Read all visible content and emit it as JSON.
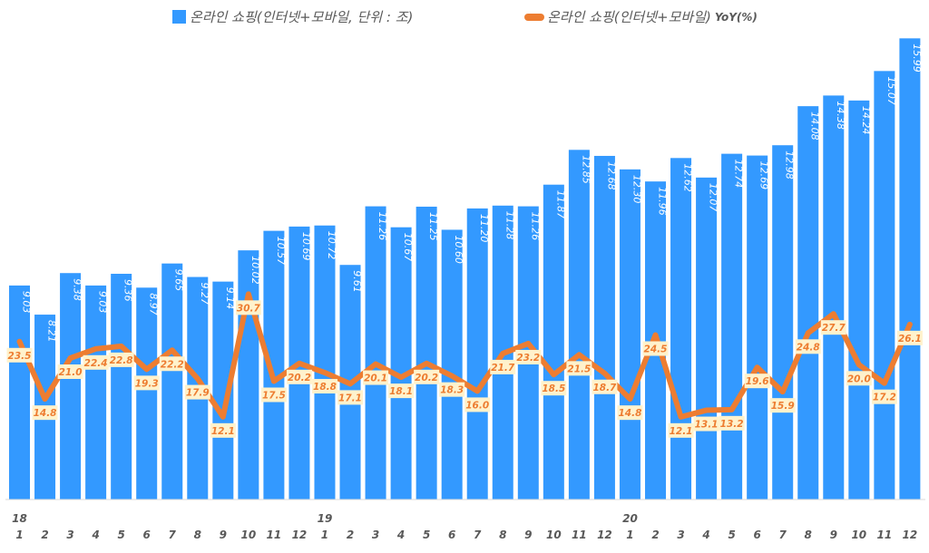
{
  "chart_data": {
    "type": "bar",
    "title": "",
    "xlabel": "",
    "ylabel": "",
    "categories": [
      "1",
      "2",
      "3",
      "4",
      "5",
      "6",
      "7",
      "8",
      "9",
      "10",
      "11",
      "12",
      "1",
      "2",
      "3",
      "4",
      "5",
      "6",
      "7",
      "8",
      "9",
      "10",
      "11",
      "12",
      "1",
      "2",
      "3",
      "4",
      "5",
      "6",
      "7",
      "8",
      "9",
      "10",
      "11",
      "12"
    ],
    "year_labels": [
      {
        "index": 0,
        "label": "18"
      },
      {
        "index": 12,
        "label": "19"
      },
      {
        "index": 24,
        "label": "20"
      }
    ],
    "series": [
      {
        "name": "온라인 쇼핑(인터넷+모바일, 단위 : 조)",
        "type": "bar",
        "color": "#3399ff",
        "axis": "left",
        "values": [
          9.03,
          8.21,
          9.38,
          9.03,
          9.36,
          8.97,
          9.65,
          9.27,
          9.14,
          10.02,
          10.57,
          10.69,
          10.72,
          9.61,
          11.26,
          10.67,
          11.25,
          10.6,
          11.2,
          11.28,
          11.26,
          11.87,
          12.85,
          12.68,
          12.3,
          11.96,
          12.62,
          12.07,
          12.74,
          12.69,
          12.98,
          14.08,
          14.38,
          14.24,
          15.07,
          15.99
        ]
      },
      {
        "name": "온라인 쇼핑(인터넷+모바일)",
        "name_suffix": "YoY(%)",
        "type": "line",
        "color": "#ed7d31",
        "axis": "right",
        "values": [
          23.5,
          14.8,
          21.0,
          22.4,
          22.8,
          19.3,
          22.2,
          17.9,
          12.1,
          30.7,
          17.5,
          20.2,
          18.8,
          17.1,
          20.1,
          18.1,
          20.2,
          18.3,
          16.0,
          21.7,
          23.2,
          18.5,
          21.5,
          18.7,
          14.8,
          24.5,
          12.1,
          13.1,
          13.2,
          19.6,
          15.9,
          24.8,
          27.7,
          20.0,
          17.2,
          26.1
        ]
      }
    ],
    "ylim_left": [
      3.08,
      16.1
    ],
    "ylim_right": [
      0,
      70
    ],
    "grid": false,
    "legend": "top",
    "data_labels": true
  }
}
